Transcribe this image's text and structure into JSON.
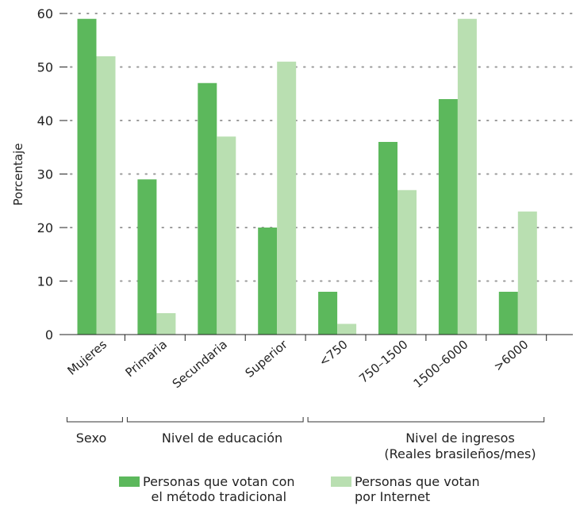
{
  "chart_data": {
    "type": "bar",
    "ylabel": "Porcentaje",
    "ylim": [
      0,
      60
    ],
    "yticks": [
      0,
      10,
      20,
      30,
      40,
      50,
      60
    ],
    "grid": "horizontal dotted",
    "categories": [
      "Mujeres",
      "Primaria",
      "Secundaria",
      "Superior",
      "<750",
      "750–1500",
      "1500–6000",
      ">6000"
    ],
    "series": [
      {
        "name": "Personas que votan con el método tradicional",
        "color": "#5cb85c",
        "values": [
          59,
          29,
          47,
          20,
          8,
          36,
          44,
          8
        ]
      },
      {
        "name": "Personas que votan por Internet",
        "color": "#b9dfb1",
        "values": [
          52,
          4,
          37,
          51,
          2,
          27,
          59,
          23
        ]
      }
    ],
    "groups": [
      {
        "label": "Sexo",
        "categories": [
          "Mujeres"
        ]
      },
      {
        "label": "Nivel de educación",
        "categories": [
          "Primaria",
          "Secundaria",
          "Superior"
        ]
      },
      {
        "label": "Nivel de ingresos",
        "sublabel": "(Reales brasileños/mes)",
        "categories": [
          "<750",
          "750–1500",
          "1500–6000",
          ">6000"
        ]
      }
    ]
  },
  "legend": [
    {
      "line1": "Personas que votan con",
      "line2": "el método tradicional"
    },
    {
      "line1": "Personas que votan",
      "line2": "por Internet"
    }
  ]
}
